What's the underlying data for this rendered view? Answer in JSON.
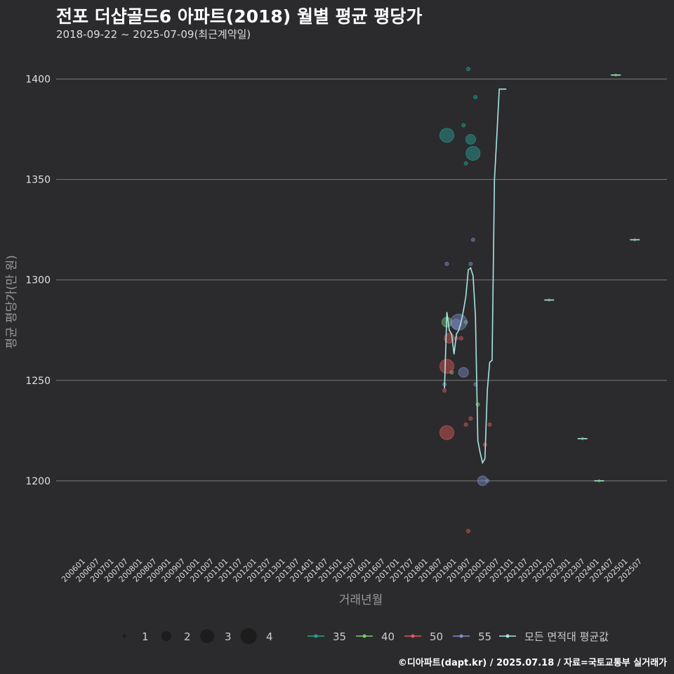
{
  "title": "전포 더샵골드6 아파트(2018) 월별 평균 평당가",
  "subtitle": "2018-09-22 ~ 2025-07-09(최근계약일)",
  "footer": "©디아파트(dapt.kr) / 2025.07.18 / 자료=국토교통부 실거래가",
  "chart_data": {
    "type": "scatter",
    "xlabel": "거래년월",
    "ylabel": "평균 평당가(만 원)",
    "x_range": [
      "200601",
      "202507"
    ],
    "ylim": [
      1165,
      1410
    ],
    "y_ticks": [
      1200,
      1250,
      1300,
      1350,
      1400
    ],
    "x_ticks": [
      "200601",
      "200607",
      "200701",
      "200707",
      "200801",
      "200807",
      "200901",
      "200907",
      "201001",
      "201007",
      "201101",
      "201107",
      "201201",
      "201207",
      "201301",
      "201307",
      "201401",
      "201407",
      "201501",
      "201507",
      "201601",
      "201607",
      "201701",
      "201707",
      "201801",
      "201807",
      "201901",
      "201907",
      "202001",
      "202007",
      "202101",
      "202107",
      "202201",
      "202207",
      "202301",
      "202307",
      "202401",
      "202407",
      "202501",
      "202507"
    ],
    "grid": true,
    "size_legend": [
      1,
      2,
      3,
      4
    ],
    "series": [
      {
        "name": "35",
        "color": "#2aa198",
        "points": [
          {
            "x": "201810",
            "y": 1372,
            "count": 3
          },
          {
            "x": "201905",
            "y": 1377,
            "count": 1
          },
          {
            "x": "201906",
            "y": 1358,
            "count": 1
          },
          {
            "x": "201907",
            "y": 1405,
            "count": 1
          },
          {
            "x": "201908",
            "y": 1370,
            "count": 2
          },
          {
            "x": "201909",
            "y": 1363,
            "count": 3
          },
          {
            "x": "201910",
            "y": 1391,
            "count": 1
          }
        ]
      },
      {
        "name": "40",
        "color": "#7bc96f",
        "points": [
          {
            "x": "201810",
            "y": 1279,
            "count": 2
          },
          {
            "x": "201812",
            "y": 1254,
            "count": 1
          },
          {
            "x": "201906",
            "y": 1279,
            "count": 1
          },
          {
            "x": "201911",
            "y": 1238,
            "count": 1
          }
        ]
      },
      {
        "name": "50",
        "color": "#e05a5a",
        "points": [
          {
            "x": "201809",
            "y": 1245,
            "count": 1
          },
          {
            "x": "201810",
            "y": 1257,
            "count": 3
          },
          {
            "x": "201810",
            "y": 1224,
            "count": 3
          },
          {
            "x": "201811",
            "y": 1271,
            "count": 2
          },
          {
            "x": "201902",
            "y": 1271,
            "count": 1
          },
          {
            "x": "201904",
            "y": 1271,
            "count": 1
          },
          {
            "x": "201906",
            "y": 1228,
            "count": 1
          },
          {
            "x": "201907",
            "y": 1175,
            "count": 1
          },
          {
            "x": "201908",
            "y": 1231,
            "count": 1
          },
          {
            "x": "202002",
            "y": 1218,
            "count": 1
          },
          {
            "x": "202004",
            "y": 1228,
            "count": 1
          }
        ]
      },
      {
        "name": "55",
        "color": "#7f8fc9",
        "points": [
          {
            "x": "201809",
            "y": 1248,
            "count": 1
          },
          {
            "x": "201810",
            "y": 1308,
            "count": 1
          },
          {
            "x": "201902",
            "y": 1278,
            "count": 2
          },
          {
            "x": "201903",
            "y": 1279,
            "count": 4
          },
          {
            "x": "201905",
            "y": 1254,
            "count": 2
          },
          {
            "x": "201908",
            "y": 1308,
            "count": 1
          },
          {
            "x": "201909",
            "y": 1320,
            "count": 1
          },
          {
            "x": "201910",
            "y": 1248,
            "count": 1
          },
          {
            "x": "202001",
            "y": 1200,
            "count": 2
          },
          {
            "x": "202003",
            "y": 1200,
            "count": 1
          }
        ]
      },
      {
        "name": "모든 면적대 평균값",
        "color": "#a8e6e0",
        "type": "line",
        "points": [
          {
            "x": "201809",
            "y": 1246
          },
          {
            "x": "201810",
            "y": 1284
          },
          {
            "x": "201811",
            "y": 1275
          },
          {
            "x": "201812",
            "y": 1273
          },
          {
            "x": "201901",
            "y": 1263
          },
          {
            "x": "201902",
            "y": 1273
          },
          {
            "x": "201903",
            "y": 1275
          },
          {
            "x": "201904",
            "y": 1279
          },
          {
            "x": "201905",
            "y": 1285
          },
          {
            "x": "201906",
            "y": 1292
          },
          {
            "x": "201907",
            "y": 1305
          },
          {
            "x": "201908",
            "y": 1306
          },
          {
            "x": "201909",
            "y": 1302
          },
          {
            "x": "201910",
            "y": 1282
          },
          {
            "x": "201911",
            "y": 1220
          },
          {
            "x": "201912",
            "y": 1214
          },
          {
            "x": "202001",
            "y": 1209
          },
          {
            "x": "202002",
            "y": 1211
          },
          {
            "x": "202003",
            "y": 1245
          },
          {
            "x": "202004",
            "y": 1259
          },
          {
            "x": "202005",
            "y": 1260
          },
          {
            "x": "202006",
            "y": 1350
          },
          {
            "x": "202007",
            "y": 1372
          },
          {
            "x": "202008",
            "y": 1395
          },
          {
            "x": "202011",
            "y": 1395
          }
        ]
      },
      {
        "name": "segments",
        "color": "#a8e6e0",
        "type": "segments",
        "points": [
          {
            "x": "202205",
            "y": 1290
          },
          {
            "x": "202307",
            "y": 1221
          },
          {
            "x": "202402",
            "y": 1200
          },
          {
            "x": "202409",
            "y": 1402
          },
          {
            "x": "202505",
            "y": 1320
          }
        ]
      }
    ]
  }
}
